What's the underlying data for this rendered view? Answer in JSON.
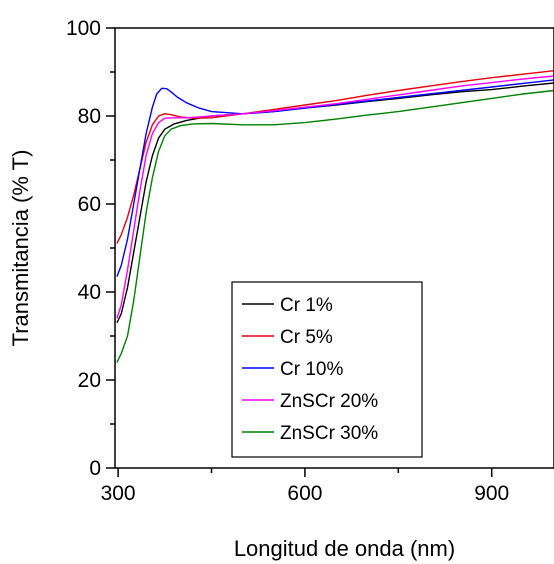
{
  "chart_data": {
    "type": "line",
    "title": "",
    "xlabel": "Longitud de onda (nm)",
    "ylabel": "Transmitancia (% T)",
    "xlim": [
      295,
      1000
    ],
    "ylim": [
      0,
      100
    ],
    "x_ticks": [
      300,
      600,
      900
    ],
    "y_ticks": [
      0,
      20,
      40,
      60,
      80,
      100
    ],
    "grid": false,
    "legend_position": "bottom-center",
    "series": [
      {
        "name": "Cr 1%",
        "color": "#000000",
        "x": [
          298,
          305,
          315,
          325,
          335,
          345,
          355,
          365,
          375,
          390,
          410,
          430,
          450,
          500,
          550,
          600,
          650,
          700,
          750,
          800,
          850,
          900,
          950,
          1000
        ],
        "y": [
          33,
          35,
          41,
          49,
          57,
          65,
          71,
          75,
          77,
          78.2,
          79,
          79.5,
          80,
          80.5,
          81,
          81.8,
          82.5,
          83.3,
          84,
          84.8,
          85.5,
          86,
          86.8,
          87.5
        ]
      },
      {
        "name": "Cr 5%",
        "color": "#e8000b",
        "x": [
          298,
          305,
          315,
          325,
          335,
          345,
          355,
          365,
          375,
          385,
          400,
          420,
          450,
          500,
          550,
          600,
          650,
          700,
          750,
          800,
          850,
          900,
          950,
          1000
        ],
        "y": [
          51,
          53,
          57,
          62,
          68,
          74,
          78,
          80,
          80.5,
          80.3,
          79.8,
          79.5,
          79.6,
          80.5,
          81.5,
          82.5,
          83.5,
          84.7,
          85.8,
          86.8,
          87.8,
          88.7,
          89.5,
          90.3
        ]
      },
      {
        "name": "Cr 10%",
        "color": "#0000ff",
        "x": [
          298,
          305,
          315,
          325,
          335,
          345,
          355,
          362,
          370,
          378,
          385,
          395,
          410,
          430,
          450,
          500,
          550,
          600,
          650,
          700,
          750,
          800,
          850,
          900,
          950,
          1000
        ],
        "y": [
          43.5,
          46,
          52,
          60,
          68,
          76,
          82,
          85,
          86.3,
          86.2,
          85.5,
          84.3,
          83,
          81.8,
          81,
          80.5,
          81,
          81.8,
          82.6,
          83.4,
          84.2,
          85,
          85.8,
          86.6,
          87.4,
          88.2
        ]
      },
      {
        "name": "ZnSCr 20%",
        "color": "#ff00ff",
        "x": [
          298,
          305,
          315,
          325,
          335,
          345,
          355,
          365,
          375,
          390,
          410,
          430,
          450,
          500,
          550,
          600,
          650,
          700,
          750,
          800,
          850,
          900,
          950,
          1000
        ],
        "y": [
          34,
          37,
          45,
          54,
          63,
          71,
          76,
          78.5,
          79.5,
          79.6,
          79.6,
          79.8,
          80,
          80.5,
          81.2,
          82,
          82.8,
          83.8,
          84.8,
          85.8,
          86.8,
          87.6,
          88.4,
          89.1
        ]
      },
      {
        "name": "ZnSCr 30%",
        "color": "#008000",
        "x": [
          298,
          305,
          315,
          325,
          335,
          345,
          355,
          365,
          375,
          385,
          400,
          420,
          450,
          500,
          550,
          600,
          650,
          700,
          750,
          800,
          850,
          900,
          950,
          1000
        ],
        "y": [
          24,
          26,
          30,
          38,
          48,
          58,
          66,
          72,
          75.5,
          77,
          77.8,
          78.2,
          78.3,
          78,
          78,
          78.5,
          79.3,
          80.2,
          81,
          82,
          83,
          84,
          85,
          85.8
        ]
      }
    ]
  }
}
